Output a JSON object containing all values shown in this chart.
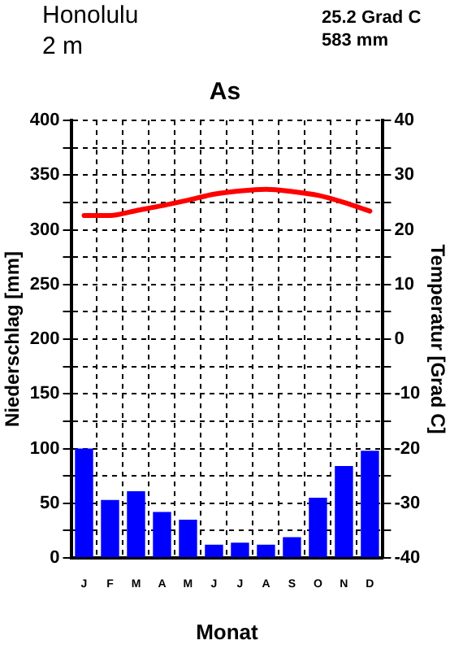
{
  "chart_data": {
    "type": "bar",
    "title": "As",
    "xlabel": "Monat",
    "ylabel": "Niederschlag [mm]",
    "y2label": "Temperatur [Grad C]",
    "annotations": [
      "Honolulu",
      "2 m",
      "25.2 Grad C",
      "583 mm"
    ],
    "categories": [
      "J",
      "F",
      "M",
      "A",
      "M",
      "J",
      "J",
      "A",
      "S",
      "O",
      "N",
      "D"
    ],
    "series": [
      {
        "color": "#0000ff",
        "values": [
          100,
          53,
          61,
          42,
          35,
          12,
          14,
          12,
          19,
          55,
          84,
          98
        ]
      },
      {
        "type": "line",
        "axis": "y2",
        "color": "#ff0000",
        "values": [
          22.6,
          22.6,
          23.5,
          24.4,
          25.4,
          26.5,
          27.1,
          27.4,
          27.0,
          26.3,
          25.0,
          23.4
        ]
      }
    ],
    "ylim": [
      0,
      400
    ],
    "yticks": [
      0,
      {
        "value": 25,
        "label": null
      },
      50,
      {
        "value": 75,
        "label": null
      },
      100,
      {
        "value": 125,
        "label": null
      },
      150,
      {
        "value": 175,
        "label": null
      },
      200,
      {
        "value": 225,
        "label": null
      },
      250,
      {
        "value": 275,
        "label": null
      },
      300,
      {
        "value": 325,
        "label": null
      },
      350,
      {
        "value": 375,
        "label": null
      },
      400
    ],
    "y2lim": [
      -40,
      40
    ],
    "y2ticks": [
      -40,
      {
        "value": -35,
        "label": null
      },
      -30,
      {
        "value": -25,
        "label": null
      },
      -20,
      {
        "value": -15,
        "label": null
      },
      -10,
      {
        "value": -5,
        "label": null
      },
      0,
      {
        "value": 5,
        "label": null
      },
      10,
      {
        "value": 15,
        "label": null
      },
      20,
      {
        "value": 25,
        "label": null
      },
      30,
      {
        "value": 35,
        "label": null
      },
      40
    ],
    "grid": true,
    "legend": false,
    "marker": "none",
    "line_style": "solid"
  }
}
